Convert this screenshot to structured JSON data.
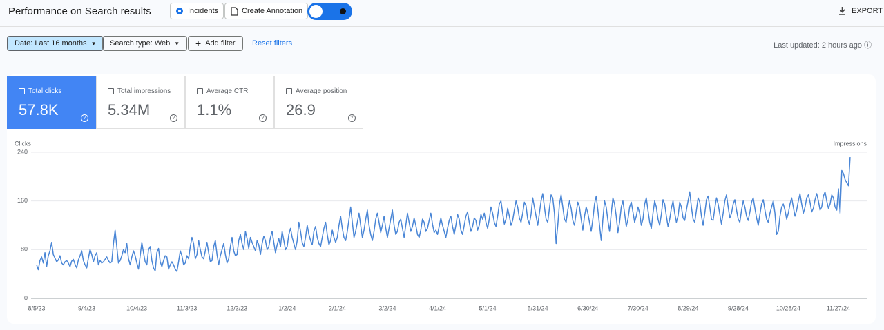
{
  "header": {
    "title": "Performance on Search results",
    "incidents": "Incidents",
    "annotation": "Create Annotation",
    "export": "EXPORT"
  },
  "filters": {
    "date": "Date: Last 16 months",
    "search_type": "Search type: Web",
    "add": "Add filter",
    "reset": "Reset filters",
    "updated": "Last updated: 2 hours ago"
  },
  "metrics": [
    {
      "label": "Total clicks",
      "value": "57.8K"
    },
    {
      "label": "Total impressions",
      "value": "5.34M"
    },
    {
      "label": "Average CTR",
      "value": "1.1%"
    },
    {
      "label": "Average position",
      "value": "26.9"
    }
  ],
  "chart_data": {
    "type": "line",
    "y_label": "Clicks",
    "y2_label": "Impressions",
    "color": "#4a86d6",
    "ylim": [
      0,
      240
    ],
    "yticks": [
      0,
      80,
      160,
      240
    ],
    "grid": true,
    "categories": [
      "8/5/23",
      null,
      null,
      null,
      null,
      null,
      null,
      null,
      null,
      null,
      null,
      null,
      null,
      null,
      null,
      null,
      null,
      null,
      null,
      null,
      null,
      null,
      null,
      null,
      null,
      null,
      null,
      null,
      null,
      null,
      "9/4/23",
      null,
      null,
      null,
      null,
      null,
      null,
      null,
      null,
      null,
      null,
      null,
      null,
      null,
      null,
      null,
      null,
      null,
      null,
      null,
      null,
      null,
      null,
      null,
      null,
      null,
      null,
      null,
      null,
      null,
      "10/4/23",
      null,
      null,
      null,
      null,
      null,
      null,
      null,
      null,
      null,
      null,
      null,
      null,
      null,
      null,
      null,
      null,
      null,
      null,
      null,
      null,
      null,
      null,
      null,
      null,
      null,
      null,
      null,
      null,
      null,
      "11/3/23",
      null,
      null,
      null,
      null,
      null,
      null,
      null,
      null,
      null,
      null,
      null,
      null,
      null,
      null,
      null,
      null,
      null,
      null,
      null,
      null,
      null,
      null,
      null,
      null,
      null,
      null,
      null,
      null,
      null,
      "12/3/23",
      null,
      null,
      null,
      null,
      null,
      null,
      null,
      null,
      null,
      null,
      null,
      null,
      null,
      null,
      null,
      null,
      null,
      null,
      null,
      null,
      null,
      null,
      null,
      null,
      null,
      null,
      null,
      null,
      null,
      "1/2/24",
      null,
      null,
      null,
      null,
      null,
      null,
      null,
      null,
      null,
      null,
      null,
      null,
      null,
      null,
      null,
      null,
      null,
      null,
      null,
      null,
      null,
      null,
      null,
      null,
      null,
      null,
      null,
      null,
      null,
      "2/1/24",
      null,
      null,
      null,
      null,
      null,
      null,
      null,
      null,
      null,
      null,
      null,
      null,
      null,
      null,
      null,
      null,
      null,
      null,
      null,
      null,
      null,
      null,
      null,
      null,
      null,
      null,
      null,
      null,
      null,
      "3/2/24",
      null,
      null,
      null,
      null,
      null,
      null,
      null,
      null,
      null,
      null,
      null,
      null,
      null,
      null,
      null,
      null,
      null,
      null,
      null,
      null,
      null,
      null,
      null,
      null,
      null,
      null,
      null,
      null,
      null,
      "4/1/24",
      null,
      null,
      null,
      null,
      null,
      null,
      null,
      null,
      null,
      null,
      null,
      null,
      null,
      null,
      null,
      null,
      null,
      null,
      null,
      null,
      null,
      null,
      null,
      null,
      null,
      null,
      null,
      null,
      null,
      "5/1/24",
      null,
      null,
      null,
      null,
      null,
      null,
      null,
      null,
      null,
      null,
      null,
      null,
      null,
      null,
      null,
      null,
      null,
      null,
      null,
      null,
      null,
      null,
      null,
      null,
      null,
      null,
      null,
      null,
      null,
      "5/31/24",
      null,
      null,
      null,
      null,
      null,
      null,
      null,
      null,
      null,
      null,
      null,
      null,
      null,
      null,
      null,
      null,
      null,
      null,
      null,
      null,
      null,
      null,
      null,
      null,
      null,
      null,
      null,
      null,
      null,
      "6/30/24",
      null,
      null,
      null,
      null,
      null,
      null,
      null,
      null,
      null,
      null,
      null,
      null,
      null,
      null,
      null,
      null,
      null,
      null,
      null,
      null,
      null,
      null,
      null,
      null,
      null,
      null,
      null,
      null,
      null,
      "7/30/24",
      null,
      null,
      null,
      null,
      null,
      null,
      null,
      null,
      null,
      null,
      null,
      null,
      null,
      null,
      null,
      null,
      null,
      null,
      null,
      null,
      null,
      null,
      null,
      null,
      null,
      null,
      null,
      null,
      null,
      "8/29/24",
      null,
      null,
      null,
      null,
      null,
      null,
      null,
      null,
      null,
      null,
      null,
      null,
      null,
      null,
      null,
      null,
      null,
      null,
      null,
      null,
      null,
      null,
      null,
      null,
      null,
      null,
      null,
      null,
      null,
      "9/28/24",
      null,
      null,
      null,
      null,
      null,
      null,
      null,
      null,
      null,
      null,
      null,
      null,
      null,
      null,
      null,
      null,
      null,
      null,
      null,
      null,
      null,
      null,
      null,
      null,
      null,
      null,
      null,
      null,
      null,
      "10/28/24",
      null,
      null,
      null,
      null,
      null,
      null,
      null,
      null,
      null,
      null,
      null,
      null,
      null,
      null,
      null,
      null,
      null,
      null,
      null,
      null,
      null,
      null,
      null,
      null,
      null,
      null,
      null,
      null,
      null,
      "11/27/24",
      null,
      null,
      null,
      null,
      null,
      null,
      null
    ],
    "values": [
      55,
      47,
      62,
      68,
      58,
      75,
      52,
      70,
      78,
      92,
      72,
      66,
      60,
      63,
      70,
      58,
      55,
      60,
      62,
      58,
      52,
      61,
      64,
      56,
      50,
      63,
      70,
      78,
      62,
      55,
      50,
      66,
      80,
      72,
      60,
      70,
      75,
      55,
      62,
      58,
      60,
      64,
      68,
      62,
      58,
      60,
      90,
      112,
      85,
      58,
      62,
      70,
      80,
      75,
      90,
      65,
      55,
      68,
      78,
      70,
      58,
      48,
      70,
      92,
      75,
      60,
      55,
      80,
      85,
      62,
      50,
      45,
      75,
      82,
      60,
      52,
      62,
      70,
      68,
      48,
      55,
      60,
      55,
      48,
      44,
      60,
      78,
      70,
      55,
      58,
      70,
      65,
      85,
      100,
      90,
      65,
      72,
      95,
      80,
      68,
      65,
      78,
      92,
      75,
      60,
      62,
      85,
      95,
      72,
      55,
      70,
      80,
      90,
      72,
      58,
      65,
      85,
      100,
      78,
      70,
      72,
      95,
      105,
      90,
      80,
      110,
      98,
      82,
      100,
      92,
      85,
      78,
      95,
      88,
      72,
      90,
      102,
      95,
      80,
      85,
      100,
      110,
      92,
      75,
      88,
      98,
      85,
      110,
      95,
      80,
      85,
      105,
      115,
      100,
      90,
      80,
      95,
      125,
      110,
      92,
      85,
      100,
      120,
      105,
      95,
      88,
      110,
      118,
      100,
      90,
      85,
      100,
      115,
      125,
      105,
      88,
      95,
      112,
      100,
      92,
      100,
      120,
      135,
      115,
      100,
      95,
      110,
      130,
      150,
      125,
      100,
      110,
      125,
      140,
      120,
      100,
      112,
      130,
      145,
      120,
      105,
      95,
      110,
      130,
      140,
      125,
      108,
      120,
      135,
      115,
      100,
      115,
      130,
      145,
      120,
      105,
      110,
      125,
      130,
      115,
      100,
      120,
      140,
      125,
      110,
      118,
      132,
      120,
      105,
      100,
      112,
      130,
      125,
      110,
      115,
      128,
      140,
      122,
      108,
      112,
      105,
      118,
      132,
      120,
      110,
      100,
      115,
      128,
      135,
      118,
      105,
      120,
      138,
      130,
      112,
      105,
      120,
      135,
      142,
      125,
      110,
      118,
      132,
      128,
      112,
      120,
      138,
      130,
      140,
      125,
      115,
      130,
      150,
      140,
      125,
      118,
      135,
      155,
      160,
      140,
      122,
      130,
      148,
      135,
      120,
      128,
      145,
      160,
      150,
      132,
      125,
      140,
      158,
      152,
      130,
      122,
      138,
      165,
      150,
      135,
      120,
      140,
      160,
      172,
      150,
      130,
      125,
      148,
      170,
      165,
      140,
      90,
      120,
      155,
      170,
      150,
      130,
      125,
      145,
      160,
      148,
      128,
      120,
      140,
      158,
      150,
      130,
      112,
      135,
      150,
      140,
      125,
      110,
      130,
      155,
      168,
      145,
      120,
      95,
      130,
      160,
      150,
      128,
      110,
      140,
      165,
      155,
      135,
      108,
      125,
      150,
      160,
      140,
      118,
      130,
      150,
      158,
      142,
      125,
      135,
      150,
      140,
      120,
      130,
      155,
      165,
      145,
      125,
      115,
      140,
      160,
      150,
      130,
      120,
      138,
      162,
      155,
      135,
      118,
      130,
      148,
      160,
      140,
      125,
      135,
      158,
      150,
      132,
      128,
      145,
      160,
      175,
      150,
      130,
      125,
      145,
      165,
      158,
      135,
      120,
      140,
      162,
      168,
      150,
      130,
      128,
      148,
      165,
      155,
      138,
      122,
      140,
      160,
      170,
      150,
      132,
      140,
      155,
      162,
      145,
      130,
      125,
      145,
      160,
      150,
      135,
      128,
      142,
      158,
      165,
      148,
      132,
      120,
      138,
      155,
      162,
      145,
      130,
      125,
      140,
      150,
      160,
      140,
      105,
      110,
      135,
      150,
      155,
      145,
      130,
      140,
      155,
      165,
      150,
      135,
      145,
      160,
      172,
      155,
      140,
      150,
      165,
      170,
      158,
      142,
      148,
      162,
      172,
      160,
      145,
      150,
      168,
      175,
      160,
      148,
      155,
      170,
      165,
      150,
      145,
      180,
      140,
      210,
      205,
      195,
      190,
      185,
      232
    ]
  }
}
